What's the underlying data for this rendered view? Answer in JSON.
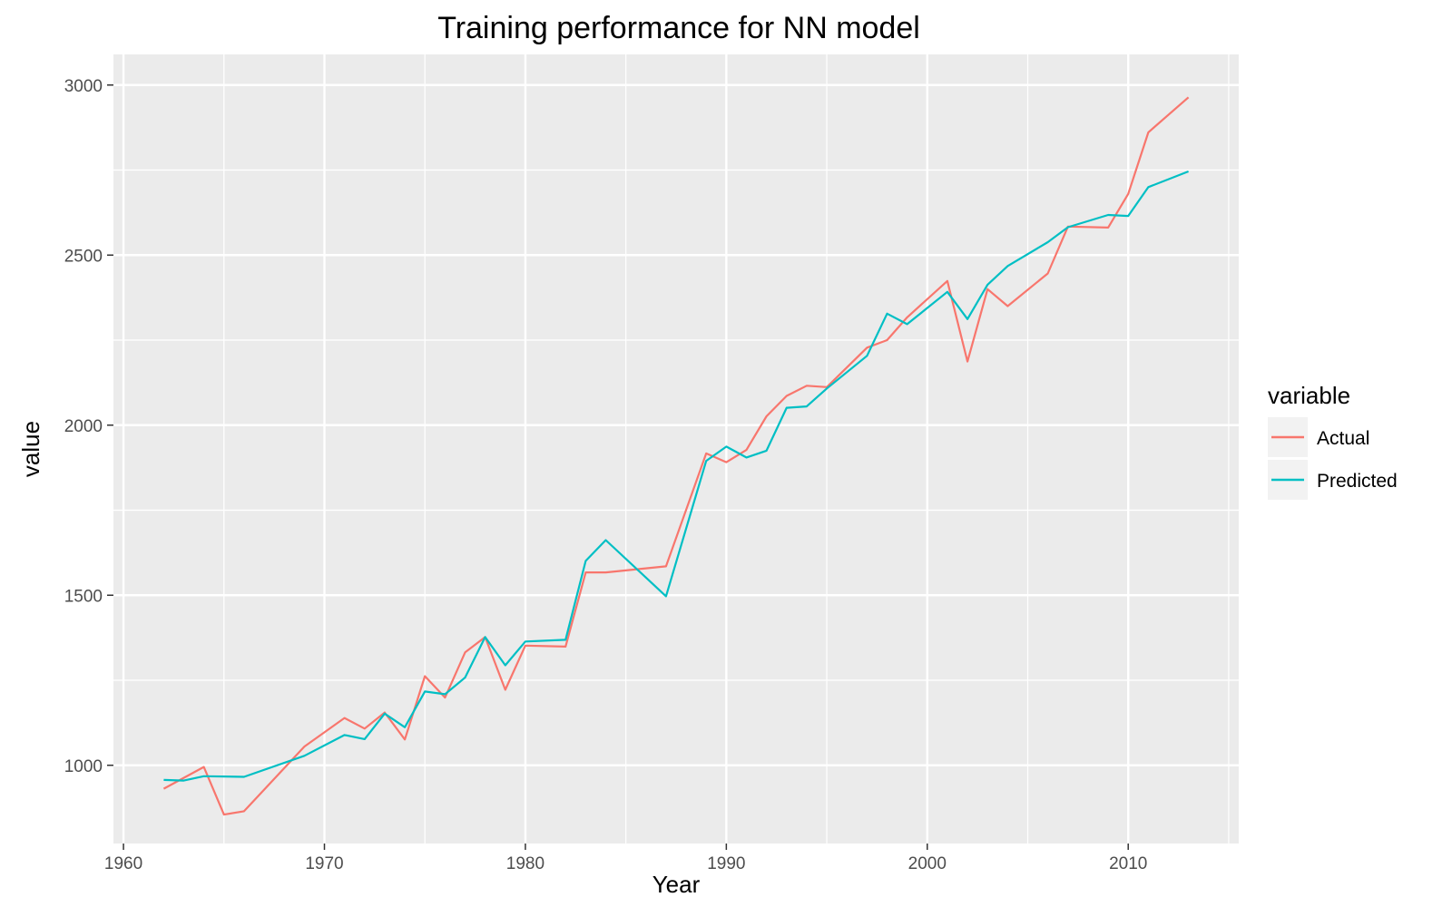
{
  "chart_data": {
    "type": "line",
    "title": "Training performance for NN model",
    "xlabel": "Year",
    "ylabel": "value",
    "xlim": [
      1959.5,
      2015.5
    ],
    "ylim": [
      770,
      3090
    ],
    "x_ticks": [
      1960,
      1970,
      1980,
      1990,
      2000,
      2010
    ],
    "x_tick_labels": [
      "1960",
      "1970",
      "1980",
      "1990",
      "2000",
      "2010"
    ],
    "y_ticks": [
      1000,
      1500,
      2000,
      2500,
      3000
    ],
    "y_tick_labels": [
      "1000",
      "1500",
      "2000",
      "2500",
      "3000"
    ],
    "grid": true,
    "legend": {
      "title": "variable",
      "position": "right"
    },
    "series": [
      {
        "name": "Actual",
        "color": "#F8766D",
        "x": [
          1962,
          1964,
          1965,
          1966,
          1969,
          1971,
          1972,
          1973,
          1974,
          1975,
          1976,
          1977,
          1978,
          1979,
          1980,
          1982,
          1983,
          1984,
          1987,
          1989,
          1990,
          1991,
          1992,
          1993,
          1994,
          1995,
          1997,
          1998,
          1999,
          2001,
          2002,
          2003,
          2004,
          2006,
          2007,
          2009,
          2010,
          2011,
          2013
        ],
        "values": [
          931,
          995,
          855,
          865,
          1055,
          1139,
          1108,
          1155,
          1076,
          1262,
          1199,
          1332,
          1377,
          1222,
          1352,
          1349,
          1567,
          1567,
          1585,
          1917,
          1891,
          1927,
          2026,
          2086,
          2116,
          2112,
          2228,
          2250,
          2317,
          2424,
          2187,
          2400,
          2350,
          2446,
          2584,
          2581,
          2680,
          2861,
          2964
        ]
      },
      {
        "name": "Predicted",
        "color": "#00BFC4",
        "x": [
          1962,
          1963,
          1964,
          1966,
          1969,
          1971,
          1972,
          1973,
          1974,
          1975,
          1976,
          1977,
          1978,
          1979,
          1980,
          1982,
          1983,
          1984,
          1987,
          1989,
          1990,
          1991,
          1992,
          1993,
          1994,
          1995,
          1997,
          1998,
          1999,
          2001,
          2002,
          2003,
          2004,
          2006,
          2007,
          2009,
          2010,
          2011,
          2013
        ],
        "values": [
          957,
          955,
          968,
          966,
          1028,
          1089,
          1077,
          1152,
          1112,
          1217,
          1209,
          1258,
          1377,
          1294,
          1364,
          1369,
          1601,
          1662,
          1497,
          1895,
          1937,
          1905,
          1925,
          2051,
          2055,
          2108,
          2204,
          2328,
          2297,
          2392,
          2312,
          2413,
          2468,
          2538,
          2582,
          2618,
          2615,
          2700,
          2746
        ]
      }
    ]
  }
}
